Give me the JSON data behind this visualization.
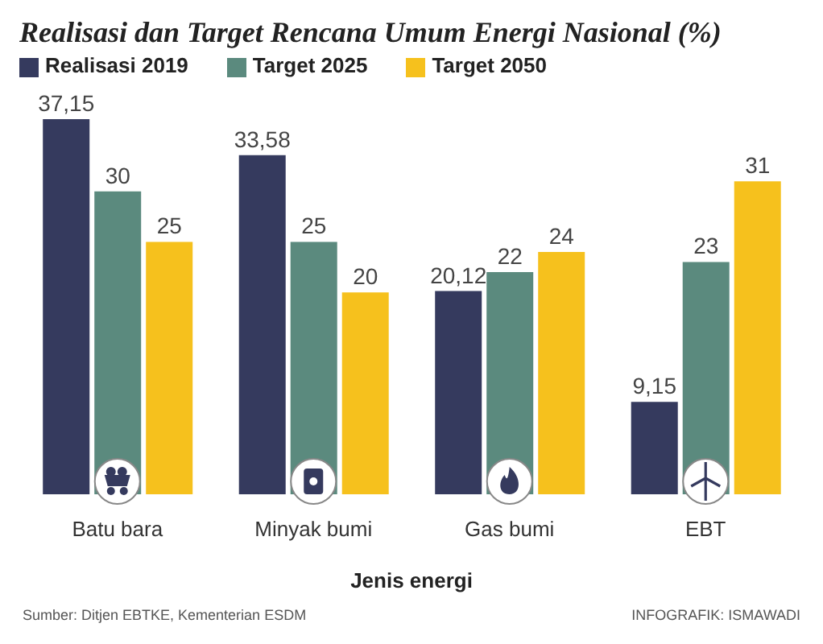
{
  "chart_data": {
    "type": "bar",
    "title": "Realisasi dan Target Rencana Umum Energi Nasional (%)",
    "xlabel": "Jenis energi",
    "categories": [
      "Batu bara",
      "Minyak bumi",
      "Gas bumi",
      "EBT"
    ],
    "series": [
      {
        "name": "Realisasi 2019",
        "color": "#353a5e",
        "values": [
          37.15,
          33.58,
          20.12,
          9.15
        ],
        "value_labels": [
          "37,15",
          "33,58",
          "20,12",
          "9,15"
        ]
      },
      {
        "name": "Target 2025",
        "color": "#5b8a7e",
        "values": [
          30,
          25,
          22,
          23
        ],
        "value_labels": [
          "30",
          "25",
          "22",
          "23"
        ]
      },
      {
        "name": "Target 2050",
        "color": "#f6c11d",
        "values": [
          25,
          20,
          24,
          31
        ],
        "value_labels": [
          "25",
          "20",
          "24",
          "31"
        ]
      }
    ],
    "legend": "top left",
    "grid": false,
    "annotations": [
      "Sumber: Ditjen EBTKE, Kementerian ESDM",
      "INFOGRAFIK: ISMAWADI"
    ]
  }
}
